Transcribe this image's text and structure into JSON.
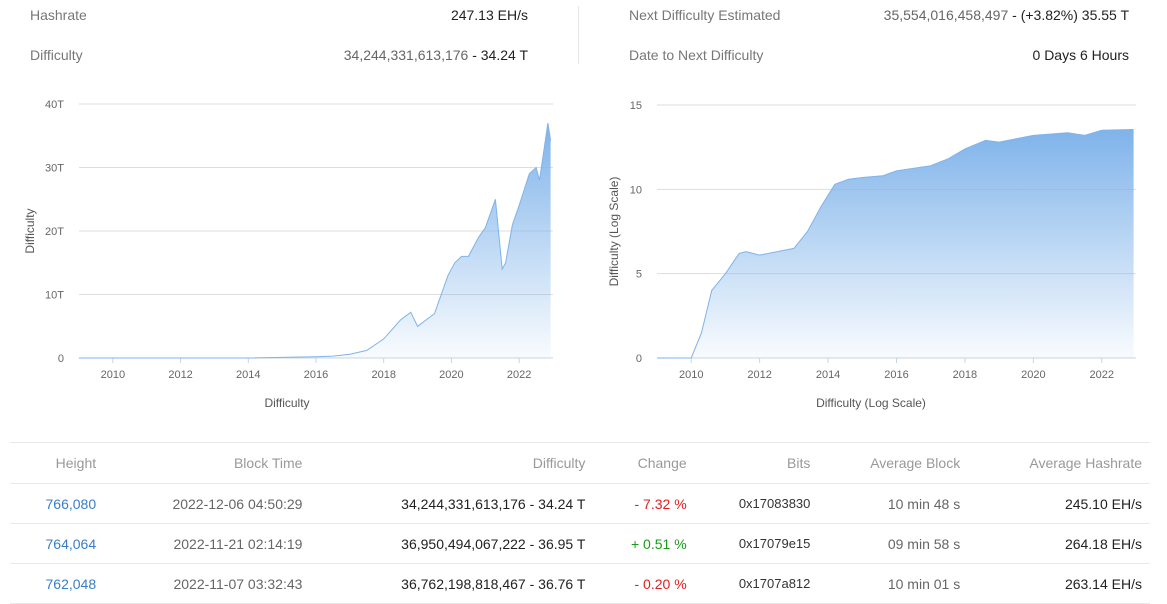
{
  "stats": {
    "hashrate_label": "Hashrate",
    "hashrate_value": "247.13 EH/s",
    "difficulty_label": "Difficulty",
    "difficulty_raw": "34,244,331,613,176",
    "difficulty_short": " - 34.24 T",
    "next_label": "Next Difficulty Estimated",
    "next_raw": "35,554,016,458,497",
    "next_short": " - (+3.82%) 35.55 T",
    "date_label": "Date to Next Difficulty",
    "date_value": "0 Days 6 Hours"
  },
  "colors": {
    "area": "#7fb3ea",
    "link": "#3b7dc4",
    "negative": "#e02020",
    "positive": "#1a9a1a"
  },
  "chart_data": [
    {
      "type": "area",
      "xlabel": "Difficulty",
      "ylabel": "Difficulty",
      "xlim": [
        2009,
        2023
      ],
      "ylim": [
        0,
        40
      ],
      "xticks": [
        "2010",
        "2012",
        "2014",
        "2016",
        "2018",
        "2020",
        "2022"
      ],
      "yticks": [
        "0",
        "10T",
        "20T",
        "30T",
        "40T"
      ],
      "grid": true,
      "x": [
        2009,
        2010,
        2012,
        2014,
        2016,
        2016.5,
        2017,
        2017.5,
        2018,
        2018.5,
        2018.8,
        2019,
        2019.5,
        2019.9,
        2020.1,
        2020.3,
        2020.5,
        2020.8,
        2021,
        2021.3,
        2021.5,
        2021.6,
        2021.8,
        2022,
        2022.3,
        2022.5,
        2022.6,
        2022.85,
        2022.93
      ],
      "y": [
        0,
        0,
        0,
        0,
        0.2,
        0.3,
        0.6,
        1.2,
        3,
        6,
        7.2,
        5,
        7,
        13,
        15,
        16,
        16,
        19,
        20.5,
        25,
        14,
        15,
        21,
        24,
        29,
        30,
        28,
        37,
        34.24
      ]
    },
    {
      "type": "area",
      "xlabel": "Difficulty (Log Scale)",
      "ylabel": "Difficulty (Log Scale)",
      "xlim": [
        2009,
        2023
      ],
      "ylim": [
        0,
        15
      ],
      "xticks": [
        "2010",
        "2012",
        "2014",
        "2016",
        "2018",
        "2020",
        "2022"
      ],
      "yticks": [
        "0",
        "5",
        "10",
        "15"
      ],
      "grid": true,
      "x": [
        2009,
        2010,
        2010.3,
        2010.6,
        2011,
        2011.4,
        2011.6,
        2012,
        2012.5,
        2013,
        2013.4,
        2013.8,
        2014.2,
        2014.6,
        2015,
        2015.6,
        2016,
        2017,
        2017.5,
        2018,
        2018.6,
        2019,
        2019.5,
        2020,
        2021,
        2021.5,
        2022,
        2022.93
      ],
      "y": [
        0,
        0,
        1.5,
        4,
        5,
        6.2,
        6.3,
        6.1,
        6.3,
        6.5,
        7.5,
        9,
        10.3,
        10.6,
        10.7,
        10.8,
        11.1,
        11.4,
        11.8,
        12.4,
        12.9,
        12.8,
        13.0,
        13.2,
        13.35,
        13.2,
        13.5,
        13.55
      ]
    }
  ],
  "table": {
    "headers": [
      "Height",
      "Block Time",
      "Difficulty",
      "Change",
      "Bits",
      "Average Block",
      "Average Hashrate"
    ],
    "rows": [
      {
        "height": "766,080",
        "time": "2022-12-06 04:50:29",
        "difficulty": "34,244,331,613,176 - 34.24 T",
        "change": "- 7.32 %",
        "bits": "0x17083830",
        "avg_block": "10 min 48 s",
        "avg_hashrate": "245.10 EH/s"
      },
      {
        "height": "764,064",
        "time": "2022-11-21 02:14:19",
        "difficulty": "36,950,494,067,222 - 36.95 T",
        "change": "+ 0.51 %",
        "bits": "0x17079e15",
        "avg_block": "09 min 58 s",
        "avg_hashrate": "264.18 EH/s"
      },
      {
        "height": "762,048",
        "time": "2022-11-07 03:32:43",
        "difficulty": "36,762,198,818,467 - 36.76 T",
        "change": "- 0.20 %",
        "bits": "0x1707a812",
        "avg_block": "10 min 01 s",
        "avg_hashrate": "263.14 EH/s"
      }
    ]
  }
}
